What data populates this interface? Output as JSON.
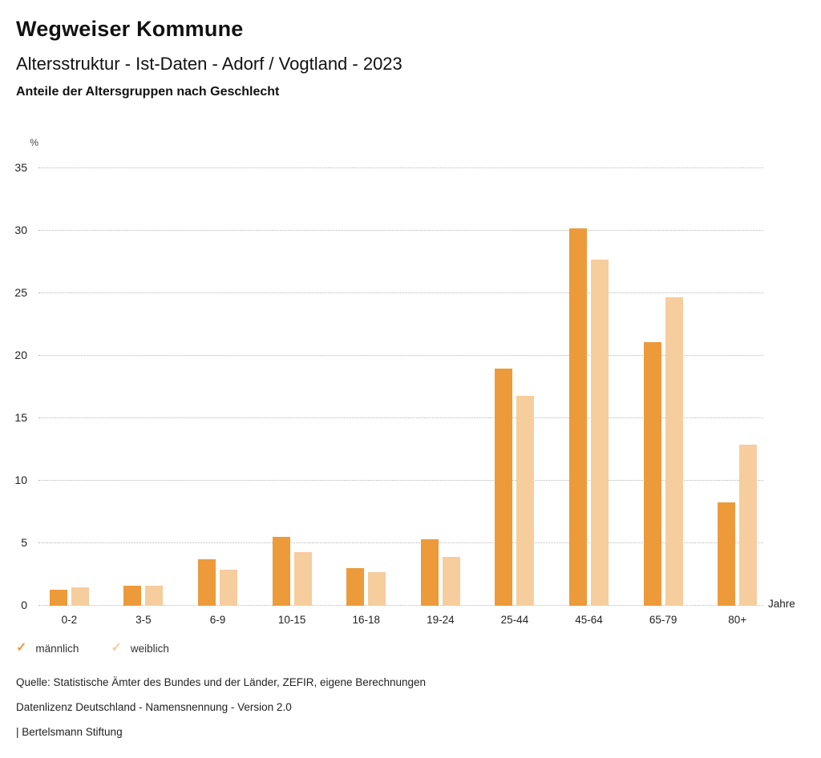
{
  "header": {
    "title": "Wegweiser Kommune",
    "subtitle": "Altersstruktur - Ist-Daten - Adorf / Vogtland - 2023",
    "caption": "Anteile der Altersgruppen nach Geschlecht"
  },
  "chart_data": {
    "type": "bar",
    "title": "Anteile der Altersgruppen nach Geschlecht",
    "unit_label": "%",
    "x_axis_label": "Jahre",
    "categories": [
      "0-2",
      "3-5",
      "6-9",
      "10-15",
      "16-18",
      "19-24",
      "25-44",
      "45-64",
      "65-79",
      "80+"
    ],
    "series": [
      {
        "name": "männlich",
        "color": "#ED9A3B",
        "values": [
          1.3,
          1.6,
          3.7,
          5.5,
          3.0,
          5.3,
          19.0,
          30.2,
          21.1,
          8.3
        ]
      },
      {
        "name": "weiblich",
        "color": "#F6CD9D",
        "values": [
          1.5,
          1.6,
          2.9,
          4.3,
          2.7,
          3.9,
          16.8,
          27.7,
          24.7,
          12.9
        ]
      }
    ],
    "ylim": [
      0,
      35
    ],
    "ytick_step": 5,
    "yticks": [
      0,
      5,
      10,
      15,
      20,
      25,
      30,
      35
    ],
    "grid": "horizontal dotted",
    "legend_position": "bottom-left"
  },
  "legend": {
    "check_glyph": "✓",
    "items": [
      {
        "label": "männlich",
        "color": "#ED9A3B"
      },
      {
        "label": "weiblich",
        "color": "#F6CD9D"
      }
    ]
  },
  "footer": {
    "lines": [
      "Quelle: Statistische Ämter des Bundes und der Länder, ZEFIR, eigene Berechnungen",
      "Datenlizenz Deutschland - Namensnennung - Version 2.0",
      "| Bertelsmann Stiftung"
    ]
  }
}
